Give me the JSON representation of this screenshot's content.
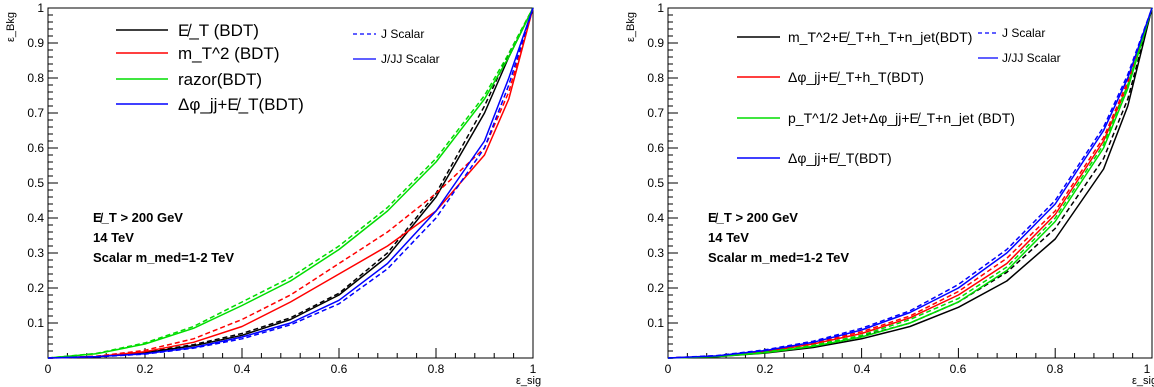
{
  "chart_data": [
    {
      "type": "line",
      "xlabel": "ε_sig",
      "ylabel": "ε_Bkg",
      "xlim": [
        0,
        1
      ],
      "ylim": [
        0,
        1
      ],
      "x_ticks": [
        "0",
        "0.2",
        "0.4",
        "0.6",
        "0.8",
        "1"
      ],
      "y_ticks": [
        "0.1",
        "0.2",
        "0.3",
        "0.4",
        "0.5",
        "0.6",
        "0.7",
        "0.8",
        "0.9",
        "1"
      ],
      "legend_main": [
        {
          "label": "E̸_T (BDT)",
          "color": "#000000"
        },
        {
          "label": "m_T^2 (BDT)",
          "color": "#ff0000"
        },
        {
          "label": "razor(BDT)",
          "color": "#00dd00"
        },
        {
          "label": "Δφ_jj+E̸_T(BDT)",
          "color": "#0000ff"
        }
      ],
      "legend_style": [
        {
          "label": "J Scalar",
          "dash": true
        },
        {
          "label": "J/JJ Scalar",
          "dash": false
        }
      ],
      "annotations": [
        "E̸_T > 200 GeV",
        "14 TeV",
        "Scalar m_med=1-2 TeV"
      ],
      "series": [
        {
          "color": "#000000",
          "dash": false,
          "points": [
            [
              0,
              0
            ],
            [
              0.1,
              0.004
            ],
            [
              0.2,
              0.015
            ],
            [
              0.3,
              0.035
            ],
            [
              0.4,
              0.065
            ],
            [
              0.5,
              0.11
            ],
            [
              0.6,
              0.18
            ],
            [
              0.7,
              0.29
            ],
            [
              0.8,
              0.46
            ],
            [
              0.9,
              0.7
            ],
            [
              0.95,
              0.86
            ],
            [
              1,
              1
            ]
          ]
        },
        {
          "color": "#000000",
          "dash": true,
          "points": [
            [
              0,
              0
            ],
            [
              0.1,
              0.005
            ],
            [
              0.2,
              0.017
            ],
            [
              0.3,
              0.038
            ],
            [
              0.4,
              0.07
            ],
            [
              0.5,
              0.115
            ],
            [
              0.6,
              0.185
            ],
            [
              0.7,
              0.3
            ],
            [
              0.8,
              0.47
            ],
            [
              0.9,
              0.72
            ],
            [
              0.95,
              0.87
            ],
            [
              1,
              1
            ]
          ]
        },
        {
          "color": "#ff0000",
          "dash": false,
          "points": [
            [
              0,
              0
            ],
            [
              0.1,
              0.004
            ],
            [
              0.2,
              0.018
            ],
            [
              0.3,
              0.045
            ],
            [
              0.4,
              0.09
            ],
            [
              0.5,
              0.16
            ],
            [
              0.6,
              0.24
            ],
            [
              0.7,
              0.32
            ],
            [
              0.8,
              0.42
            ],
            [
              0.9,
              0.58
            ],
            [
              0.95,
              0.74
            ],
            [
              1,
              1
            ]
          ]
        },
        {
          "color": "#ff0000",
          "dash": true,
          "points": [
            [
              0,
              0
            ],
            [
              0.1,
              0.005
            ],
            [
              0.2,
              0.022
            ],
            [
              0.3,
              0.055
            ],
            [
              0.4,
              0.11
            ],
            [
              0.5,
              0.18
            ],
            [
              0.6,
              0.27
            ],
            [
              0.7,
              0.36
            ],
            [
              0.8,
              0.47
            ],
            [
              0.9,
              0.6
            ],
            [
              0.95,
              0.76
            ],
            [
              1,
              1
            ]
          ]
        },
        {
          "color": "#00dd00",
          "dash": false,
          "points": [
            [
              0,
              0
            ],
            [
              0.1,
              0.012
            ],
            [
              0.2,
              0.04
            ],
            [
              0.3,
              0.085
            ],
            [
              0.4,
              0.15
            ],
            [
              0.5,
              0.22
            ],
            [
              0.6,
              0.31
            ],
            [
              0.7,
              0.42
            ],
            [
              0.8,
              0.56
            ],
            [
              0.9,
              0.74
            ],
            [
              0.95,
              0.86
            ],
            [
              1,
              1
            ]
          ]
        },
        {
          "color": "#00dd00",
          "dash": true,
          "points": [
            [
              0,
              0
            ],
            [
              0.1,
              0.013
            ],
            [
              0.2,
              0.043
            ],
            [
              0.3,
              0.09
            ],
            [
              0.4,
              0.16
            ],
            [
              0.5,
              0.23
            ],
            [
              0.6,
              0.32
            ],
            [
              0.7,
              0.43
            ],
            [
              0.8,
              0.57
            ],
            [
              0.9,
              0.75
            ],
            [
              0.95,
              0.87
            ],
            [
              1,
              1
            ]
          ]
        },
        {
          "color": "#0000ff",
          "dash": false,
          "points": [
            [
              0,
              0
            ],
            [
              0.1,
              0.004
            ],
            [
              0.2,
              0.012
            ],
            [
              0.3,
              0.03
            ],
            [
              0.4,
              0.06
            ],
            [
              0.5,
              0.1
            ],
            [
              0.6,
              0.165
            ],
            [
              0.7,
              0.27
            ],
            [
              0.8,
              0.42
            ],
            [
              0.9,
              0.62
            ],
            [
              0.95,
              0.8
            ],
            [
              1,
              1
            ]
          ]
        },
        {
          "color": "#0000ff",
          "dash": true,
          "points": [
            [
              0,
              0
            ],
            [
              0.1,
              0.003
            ],
            [
              0.2,
              0.011
            ],
            [
              0.3,
              0.028
            ],
            [
              0.4,
              0.055
            ],
            [
              0.5,
              0.095
            ],
            [
              0.6,
              0.155
            ],
            [
              0.7,
              0.255
            ],
            [
              0.8,
              0.4
            ],
            [
              0.9,
              0.6
            ],
            [
              0.95,
              0.78
            ],
            [
              1,
              1
            ]
          ]
        }
      ]
    },
    {
      "type": "line",
      "xlabel": "ε_sig",
      "ylabel": "ε_Bkg",
      "xlim": [
        0,
        1
      ],
      "ylim": [
        0,
        1
      ],
      "x_ticks": [
        "0",
        "0.2",
        "0.4",
        "0.6",
        "0.8",
        "1"
      ],
      "y_ticks": [
        "0.1",
        "0.2",
        "0.3",
        "0.4",
        "0.5",
        "0.6",
        "0.7",
        "0.8",
        "0.9",
        "1"
      ],
      "legend_main": [
        {
          "label": "m_T^2+E̸_T+h_T+n_jet(BDT)",
          "color": "#000000"
        },
        {
          "label": "Δφ_jj+E̸_T+h_T(BDT)",
          "color": "#ff0000"
        },
        {
          "label": "p_T^1/2 Jet+Δφ_jj+E̸_T+n_jet (BDT)",
          "color": "#00dd00"
        },
        {
          "label": "Δφ_jj+E̸_T(BDT)",
          "color": "#0000ff"
        }
      ],
      "legend_style": [
        {
          "label": "J Scalar",
          "dash": true
        },
        {
          "label": "J/JJ Scalar",
          "dash": false
        }
      ],
      "annotations": [
        "E̸_T > 200 GeV",
        "14 TeV",
        "Scalar m_med=1-2 TeV"
      ],
      "series": [
        {
          "color": "#000000",
          "dash": false,
          "points": [
            [
              0,
              0
            ],
            [
              0.1,
              0.004
            ],
            [
              0.2,
              0.014
            ],
            [
              0.3,
              0.03
            ],
            [
              0.4,
              0.055
            ],
            [
              0.5,
              0.09
            ],
            [
              0.6,
              0.145
            ],
            [
              0.7,
              0.22
            ],
            [
              0.8,
              0.34
            ],
            [
              0.9,
              0.54
            ],
            [
              0.95,
              0.72
            ],
            [
              1,
              1
            ]
          ]
        },
        {
          "color": "#000000",
          "dash": true,
          "points": [
            [
              0,
              0
            ],
            [
              0.1,
              0.005
            ],
            [
              0.2,
              0.016
            ],
            [
              0.3,
              0.034
            ],
            [
              0.4,
              0.062
            ],
            [
              0.5,
              0.1
            ],
            [
              0.6,
              0.16
            ],
            [
              0.7,
              0.245
            ],
            [
              0.8,
              0.37
            ],
            [
              0.9,
              0.57
            ],
            [
              0.95,
              0.74
            ],
            [
              1,
              1
            ]
          ]
        },
        {
          "color": "#ff0000",
          "dash": false,
          "points": [
            [
              0,
              0
            ],
            [
              0.1,
              0.005
            ],
            [
              0.2,
              0.018
            ],
            [
              0.3,
              0.04
            ],
            [
              0.4,
              0.07
            ],
            [
              0.5,
              0.115
            ],
            [
              0.6,
              0.18
            ],
            [
              0.7,
              0.27
            ],
            [
              0.8,
              0.41
            ],
            [
              0.9,
              0.62
            ],
            [
              0.95,
              0.78
            ],
            [
              1,
              1
            ]
          ]
        },
        {
          "color": "#ff0000",
          "dash": true,
          "points": [
            [
              0,
              0
            ],
            [
              0.1,
              0.006
            ],
            [
              0.2,
              0.02
            ],
            [
              0.3,
              0.043
            ],
            [
              0.4,
              0.075
            ],
            [
              0.5,
              0.12
            ],
            [
              0.6,
              0.19
            ],
            [
              0.7,
              0.285
            ],
            [
              0.8,
              0.42
            ],
            [
              0.9,
              0.63
            ],
            [
              0.95,
              0.79
            ],
            [
              1,
              1
            ]
          ]
        },
        {
          "color": "#00dd00",
          "dash": false,
          "points": [
            [
              0,
              0
            ],
            [
              0.1,
              0.004
            ],
            [
              0.2,
              0.015
            ],
            [
              0.3,
              0.033
            ],
            [
              0.4,
              0.06
            ],
            [
              0.5,
              0.1
            ],
            [
              0.6,
              0.16
            ],
            [
              0.7,
              0.25
            ],
            [
              0.8,
              0.39
            ],
            [
              0.9,
              0.6
            ],
            [
              0.95,
              0.77
            ],
            [
              1,
              1
            ]
          ]
        },
        {
          "color": "#00dd00",
          "dash": true,
          "points": [
            [
              0,
              0
            ],
            [
              0.1,
              0.005
            ],
            [
              0.2,
              0.017
            ],
            [
              0.3,
              0.036
            ],
            [
              0.4,
              0.065
            ],
            [
              0.5,
              0.11
            ],
            [
              0.6,
              0.17
            ],
            [
              0.7,
              0.26
            ],
            [
              0.8,
              0.4
            ],
            [
              0.9,
              0.61
            ],
            [
              0.95,
              0.78
            ],
            [
              1,
              1
            ]
          ]
        },
        {
          "color": "#0000ff",
          "dash": false,
          "points": [
            [
              0,
              0
            ],
            [
              0.1,
              0.006
            ],
            [
              0.2,
              0.021
            ],
            [
              0.3,
              0.045
            ],
            [
              0.4,
              0.08
            ],
            [
              0.5,
              0.13
            ],
            [
              0.6,
              0.2
            ],
            [
              0.7,
              0.3
            ],
            [
              0.8,
              0.44
            ],
            [
              0.9,
              0.65
            ],
            [
              0.95,
              0.8
            ],
            [
              1,
              1
            ]
          ]
        },
        {
          "color": "#0000ff",
          "dash": true,
          "points": [
            [
              0,
              0
            ],
            [
              0.1,
              0.007
            ],
            [
              0.2,
              0.023
            ],
            [
              0.3,
              0.048
            ],
            [
              0.4,
              0.085
            ],
            [
              0.5,
              0.135
            ],
            [
              0.6,
              0.21
            ],
            [
              0.7,
              0.31
            ],
            [
              0.8,
              0.45
            ],
            [
              0.9,
              0.66
            ],
            [
              0.95,
              0.81
            ],
            [
              1,
              1
            ]
          ]
        }
      ]
    }
  ]
}
